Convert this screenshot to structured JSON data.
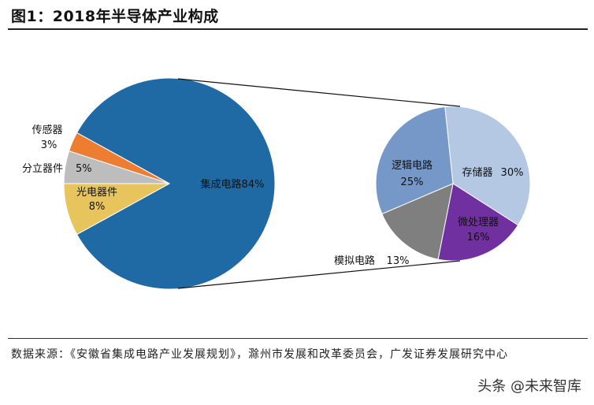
{
  "title": "图1：2018年半导体产业构成",
  "source_text": "数据来源：《安徽省集成电路产业发展规划》，滁州市发展和改革委员会，广发证券发展研究中心",
  "watermark": "头条 @未来智库",
  "chart_data": [
    {
      "type": "pie",
      "slices": [
        {
          "name": "集成电路",
          "value": 84,
          "label": "集成电路84%",
          "color": "#1f6aa5"
        },
        {
          "name": "光电器件",
          "value": 8,
          "label": "8%",
          "color": "#e8c45c"
        },
        {
          "name": "分立器件",
          "value": 5,
          "label": "5%",
          "color": "#bdbdbd"
        },
        {
          "name": "传感器",
          "value": 3,
          "label": "3%",
          "color": "#ed7d31"
        }
      ]
    },
    {
      "type": "pie",
      "parent": "集成电路",
      "slices": [
        {
          "name": "存储器",
          "value": 30,
          "label": "30%",
          "color": "#b4c7e3"
        },
        {
          "name": "微处理器",
          "value": 16,
          "label": "16%",
          "color": "#7030a0"
        },
        {
          "name": "模拟电路",
          "value": 13,
          "label": "13%",
          "color": "#7f7f7f"
        },
        {
          "name": "逻辑电路",
          "value": 25,
          "label": "25%",
          "color": "#7598c8"
        }
      ]
    }
  ]
}
